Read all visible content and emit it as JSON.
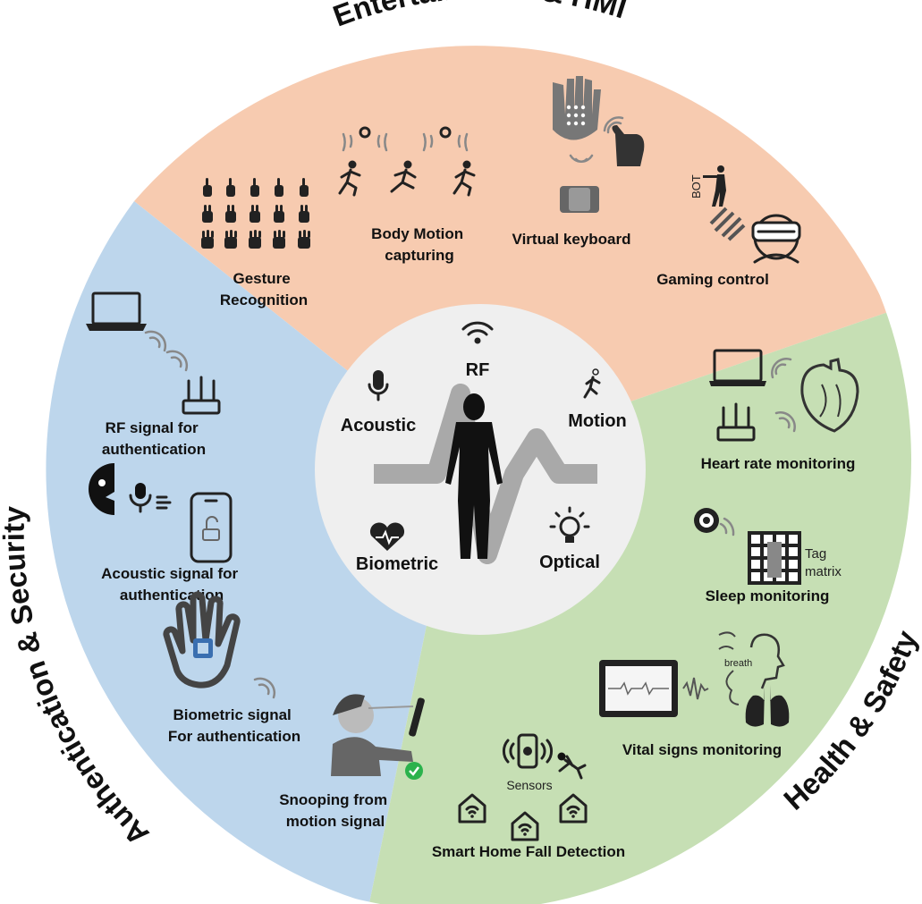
{
  "sectors": {
    "entertainment": {
      "title": "Entertainment & HMI",
      "color": "#f7cbb0",
      "items": {
        "gesture": [
          "Gesture",
          "Recognition"
        ],
        "body_motion": [
          "Body Motion",
          "capturing"
        ],
        "virtual_keyboard": "Virtual keyboard",
        "gaming": "Gaming control",
        "bot": "BOT"
      }
    },
    "authentication": {
      "title": "Authentication & Security",
      "color": "#bdd6ec",
      "items": {
        "rf": [
          "RF signal for",
          "authentication"
        ],
        "acoustic": [
          "Acoustic signal for",
          "authentication"
        ],
        "biometric": [
          "Biometric signal",
          "For authentication"
        ],
        "snooping": [
          "Snooping from",
          "motion signal"
        ]
      }
    },
    "health": {
      "title": "Health & Safety",
      "color": "#c6dfb4",
      "items": {
        "heart": "Heart rate monitoring",
        "sleep": "Sleep monitoring",
        "tag_matrix": [
          "Tag",
          "matrix"
        ],
        "breath": "breath",
        "vital": "Vital signs monitoring",
        "sensors": "Sensors",
        "fall": "Smart Home Fall Detection"
      }
    }
  },
  "core": {
    "color": "#efefef",
    "labels": {
      "rf": "RF",
      "acoustic": "Acoustic",
      "motion": "Motion",
      "biometric": "Biometric",
      "optical": "Optical"
    }
  },
  "icons": [
    "wifi-icon",
    "microphone-icon",
    "runner-icon",
    "heart-pulse-icon",
    "light-bulb-icon",
    "human-silhouette",
    "laptop-icon",
    "router-icon",
    "phone-lock-icon",
    "hand-icon",
    "person-icon",
    "check-icon",
    "heart-organ-icon",
    "sleep-radar-icon",
    "lungs-icon",
    "monitor-icon",
    "house-wifi-icon",
    "falling-person-icon",
    "vr-headset-icon",
    "soldier-icon",
    "keyboard-glove-icon"
  ]
}
